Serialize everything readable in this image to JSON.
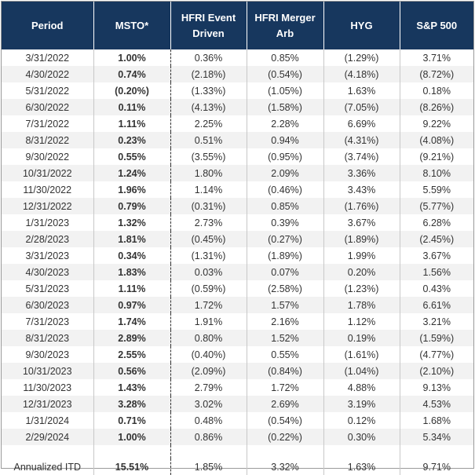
{
  "headers": [
    "Period",
    "MSTO*",
    "HFRI Event Driven",
    "HFRI Merger Arb",
    "HYG",
    "S&P 500"
  ],
  "rows": [
    [
      "3/31/2022",
      "1.00%",
      "0.36%",
      "0.85%",
      "(1.29%)",
      "3.71%"
    ],
    [
      "4/30/2022",
      "0.74%",
      "(2.18%)",
      "(0.54%)",
      "(4.18%)",
      "(8.72%)"
    ],
    [
      "5/31/2022",
      "(0.20%)",
      "(1.33%)",
      "(1.05%)",
      "1.63%",
      "0.18%"
    ],
    [
      "6/30/2022",
      "0.11%",
      "(4.13%)",
      "(1.58%)",
      "(7.05%)",
      "(8.26%)"
    ],
    [
      "7/31/2022",
      "1.11%",
      "2.25%",
      "2.28%",
      "6.69%",
      "9.22%"
    ],
    [
      "8/31/2022",
      "0.23%",
      "0.51%",
      "0.94%",
      "(4.31%)",
      "(4.08%)"
    ],
    [
      "9/30/2022",
      "0.55%",
      "(3.55%)",
      "(0.95%)",
      "(3.74%)",
      "(9.21%)"
    ],
    [
      "10/31/2022",
      "1.24%",
      "1.80%",
      "2.09%",
      "3.36%",
      "8.10%"
    ],
    [
      "11/30/2022",
      "1.96%",
      "1.14%",
      "(0.46%)",
      "3.43%",
      "5.59%"
    ],
    [
      "12/31/2022",
      "0.79%",
      "(0.31%)",
      "0.85%",
      "(1.76%)",
      "(5.77%)"
    ],
    [
      "1/31/2023",
      "1.32%",
      "2.73%",
      "0.39%",
      "3.67%",
      "6.28%"
    ],
    [
      "2/28/2023",
      "1.81%",
      "(0.45%)",
      "(0.27%)",
      "(1.89%)",
      "(2.45%)"
    ],
    [
      "3/31/2023",
      "0.34%",
      "(1.31%)",
      "(1.89%)",
      "1.99%",
      "3.67%"
    ],
    [
      "4/30/2023",
      "1.83%",
      "0.03%",
      "0.07%",
      "0.20%",
      "1.56%"
    ],
    [
      "5/31/2023",
      "1.11%",
      "(0.59%)",
      "(2.58%)",
      "(1.23%)",
      "0.43%"
    ],
    [
      "6/30/2023",
      "0.97%",
      "1.72%",
      "1.57%",
      "1.78%",
      "6.61%"
    ],
    [
      "7/31/2023",
      "1.74%",
      "1.91%",
      "2.16%",
      "1.12%",
      "3.21%"
    ],
    [
      "8/31/2023",
      "2.89%",
      "0.80%",
      "1.52%",
      "0.19%",
      "(1.59%)"
    ],
    [
      "9/30/2023",
      "2.55%",
      "(0.40%)",
      "0.55%",
      "(1.61%)",
      "(4.77%)"
    ],
    [
      "10/31/2023",
      "0.56%",
      "(2.09%)",
      "(0.84%)",
      "(1.04%)",
      "(2.10%)"
    ],
    [
      "11/30/2023",
      "1.43%",
      "2.79%",
      "1.72%",
      "4.88%",
      "9.13%"
    ],
    [
      "12/31/2023",
      "3.28%",
      "3.02%",
      "2.69%",
      "3.19%",
      "4.53%"
    ],
    [
      "1/31/2024",
      "0.71%",
      "0.48%",
      "(0.54%)",
      "0.12%",
      "1.68%"
    ],
    [
      "2/29/2024",
      "1.00%",
      "0.86%",
      "(0.22%)",
      "0.30%",
      "5.34%"
    ]
  ],
  "summary": [
    "Annualized ITD",
    "15.51%",
    "1.85%",
    "3.32%",
    "1.63%",
    "9.71%"
  ],
  "colors": {
    "header_bg": "#17375e",
    "header_text": "#ffffff",
    "alt_row_bg": "#f2f2f2",
    "text": "#333333"
  }
}
